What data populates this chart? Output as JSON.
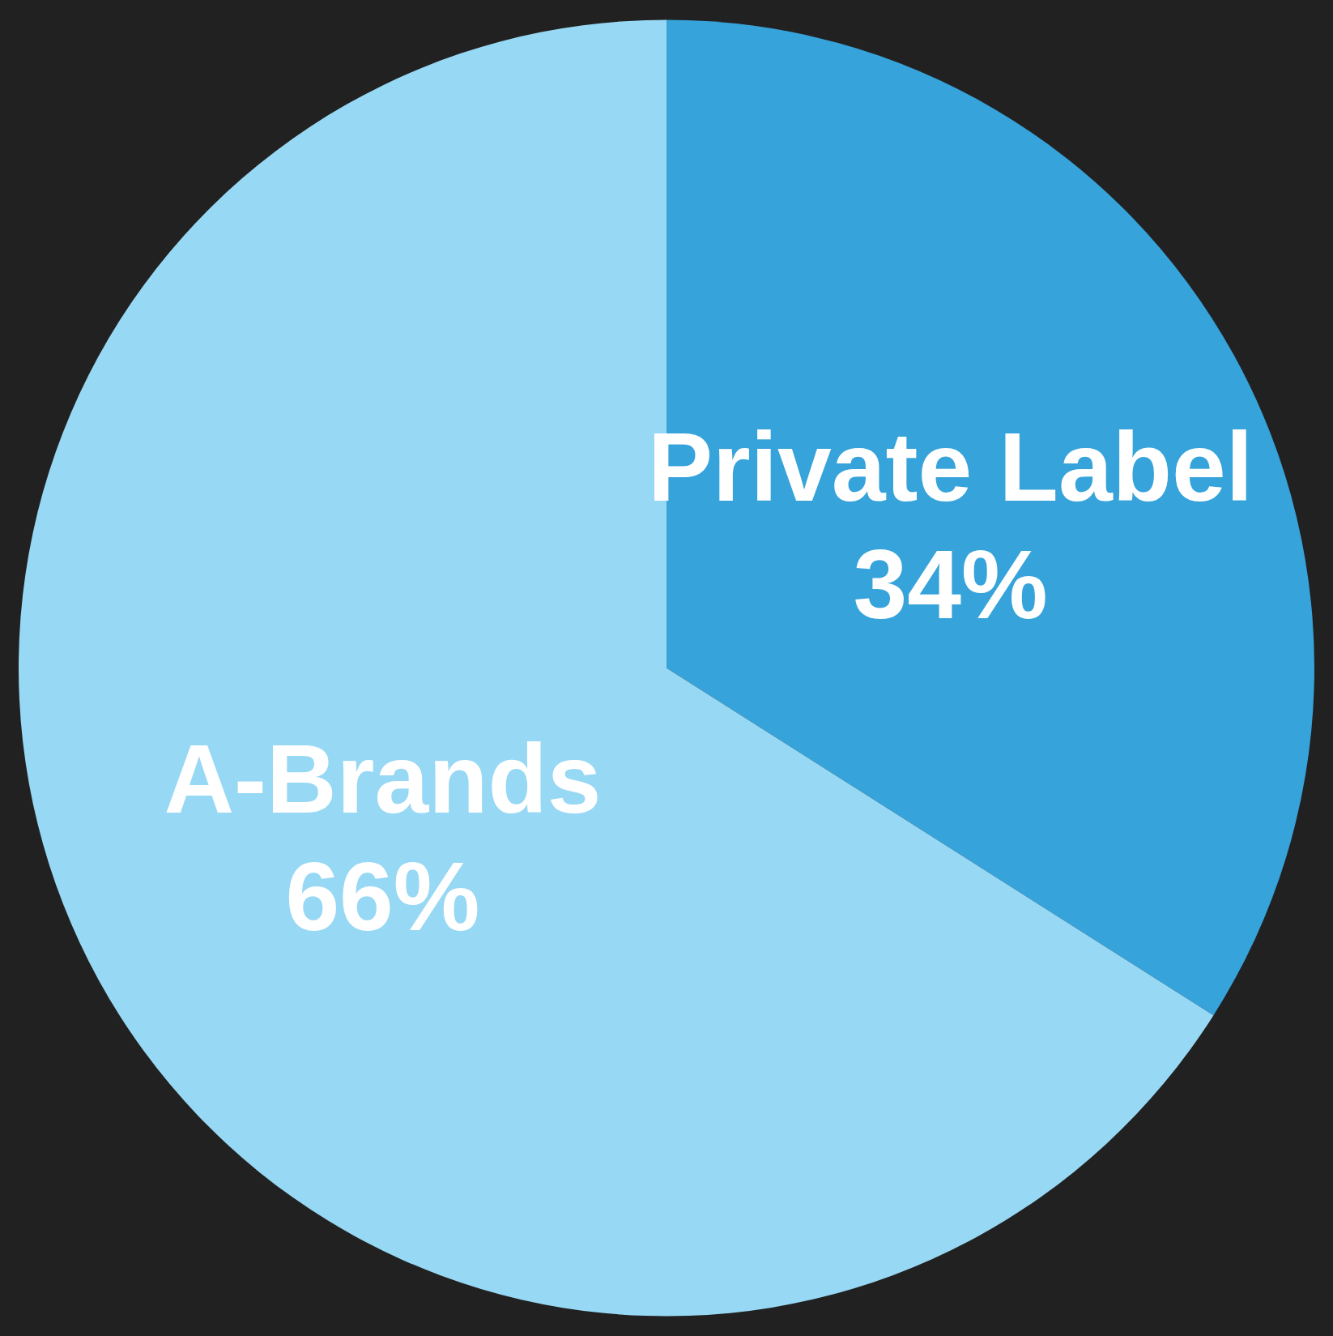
{
  "chart_data": {
    "type": "pie",
    "categories": [
      "Private Label",
      "A-Brands"
    ],
    "values": [
      34,
      66
    ],
    "colors": [
      "#36a3da",
      "#97d8f4"
    ],
    "value_labels": [
      "34%",
      "66%"
    ]
  }
}
